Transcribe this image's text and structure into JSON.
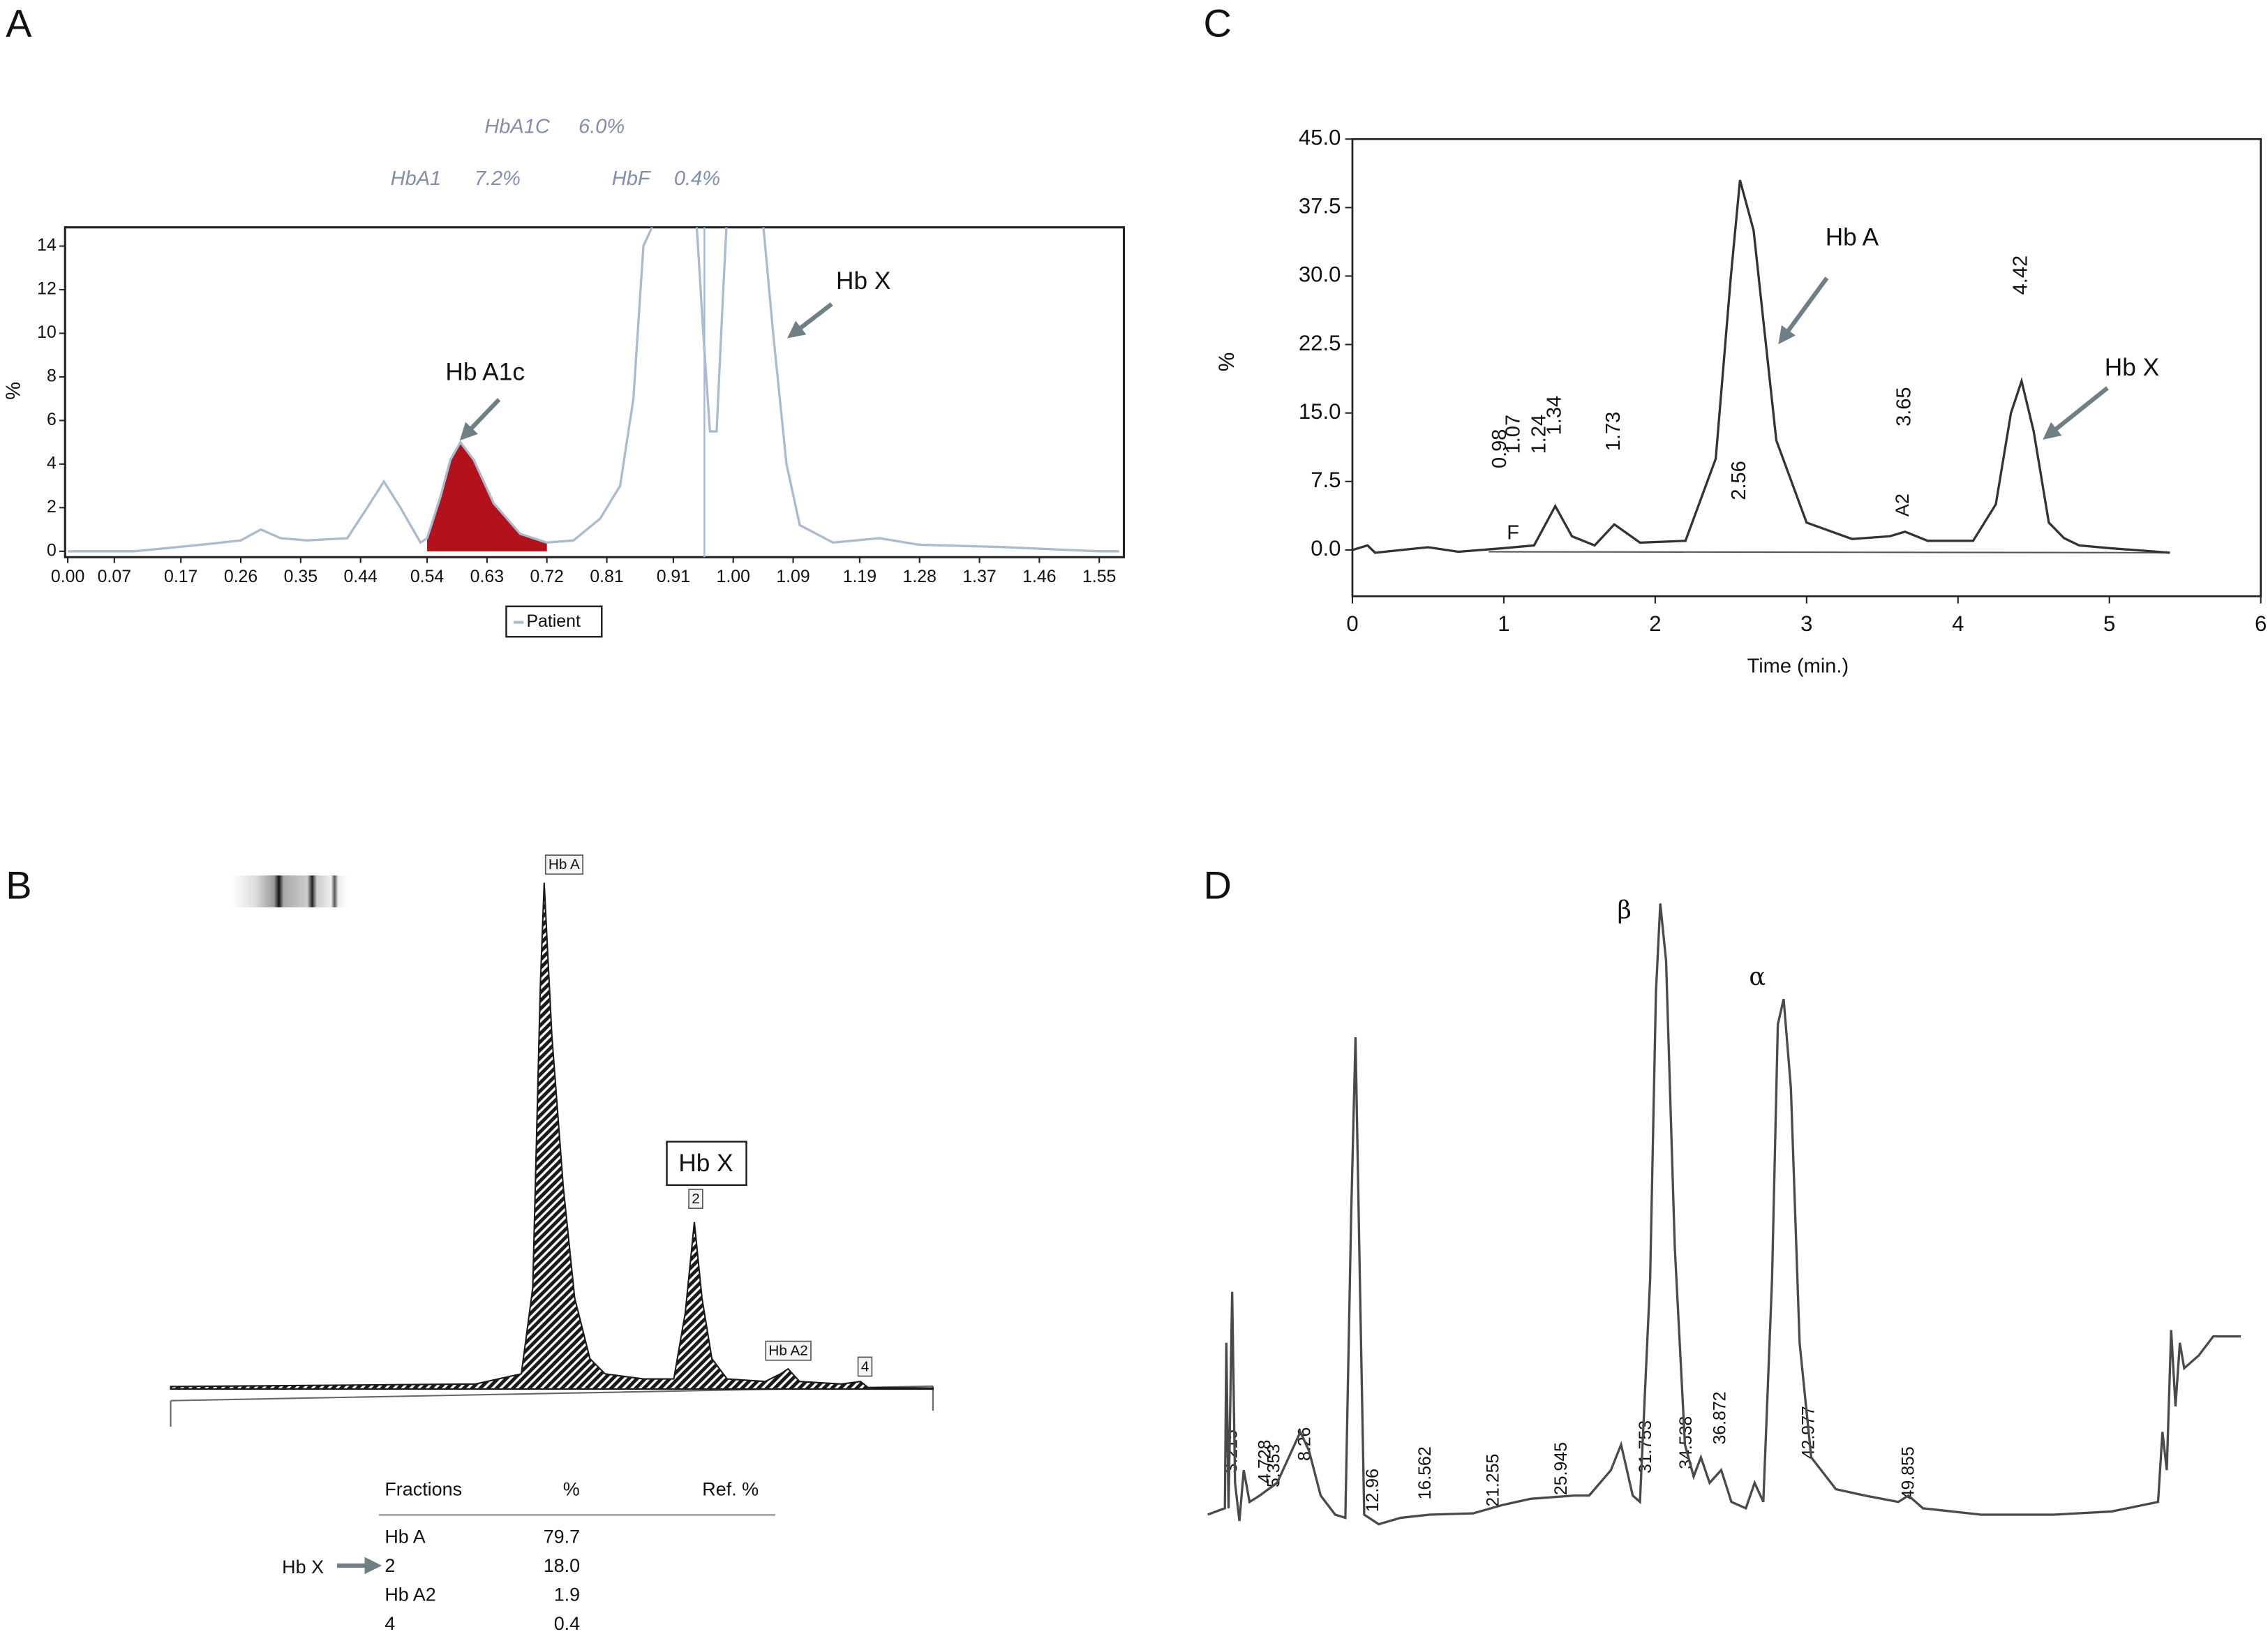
{
  "chart_data": [
    {
      "panel": "A",
      "type": "line",
      "x": [
        0,
        0.1,
        0.2,
        0.26,
        0.29,
        0.32,
        0.36,
        0.42,
        0.45,
        0.475,
        0.5,
        0.53,
        0.54,
        0.56,
        0.575,
        0.59,
        0.61,
        0.64,
        0.68,
        0.72,
        0.76,
        0.8,
        0.83,
        0.85,
        0.865,
        0.88,
        0.945,
        0.955,
        0.965,
        0.975,
        0.985,
        0.99,
        1.045,
        1.06,
        1.08,
        1.1,
        1.15,
        1.22,
        1.28,
        1.4,
        1.55,
        1.58
      ],
      "series": [
        {
          "name": "Patient",
          "color": "#a9bbcf",
          "values": [
            0,
            0,
            0.3,
            0.5,
            1.0,
            0.6,
            0.5,
            0.6,
            2.0,
            3.2,
            2.0,
            0.4,
            0.6,
            2.5,
            4.2,
            5.0,
            4.2,
            2.2,
            0.8,
            0.4,
            0.5,
            1.5,
            3,
            7,
            14,
            15,
            15,
            10,
            5.5,
            5.5,
            12,
            15,
            15,
            10,
            4,
            1.2,
            0.4,
            0.6,
            0.3,
            0.2,
            0,
            0
          ]
        }
      ],
      "highlight": {
        "xmin": 0.54,
        "xmax": 0.72,
        "color": "#b3121c"
      },
      "xlim": [
        -0.004,
        1.587
      ],
      "ylim": [
        -0.27,
        14.86
      ],
      "xticks": [
        {
          "value": 0,
          "label": "0.00"
        },
        0.07,
        0.17,
        0.26,
        0.35,
        0.44,
        0.54,
        0.63,
        0.72,
        0.81,
        0.91,
        {
          "value": 1,
          "label": "1.00"
        },
        1.09,
        1.19,
        1.28,
        1.37,
        1.46,
        1.55
      ],
      "yticks": [
        0,
        2,
        4,
        6,
        8,
        10,
        12,
        14
      ],
      "ylabel": "%",
      "annotations": {
        "hba1c_name": "HbA1C",
        "hba1c_value": "6.0%",
        "hba1_name": "HbA1",
        "hba1_value": "7.2%",
        "hbf_name": "HbF",
        "hbf_value": "0.4%",
        "peak_a1c": "Hb A1c",
        "peak_x": "Hb X"
      }
    },
    {
      "panel": "B",
      "type": "area",
      "x": [
        0,
        40,
        46,
        47.5,
        48.5,
        49,
        50,
        51.5,
        53,
        55,
        57,
        62,
        66,
        67.5,
        68.7,
        69.7,
        71,
        73,
        78,
        80,
        81,
        82.5,
        88,
        90.5,
        91.5,
        100
      ],
      "values": [
        0.5,
        1,
        3,
        20,
        80,
        100,
        70,
        40,
        18,
        6,
        3,
        2,
        2,
        15,
        33,
        18,
        6,
        2,
        1.5,
        3,
        4,
        1.5,
        1,
        1.5,
        0.3,
        0.2
      ],
      "color": "#1a1a1a",
      "xlim": [
        0,
        100
      ],
      "ylim": [
        0,
        100
      ],
      "peak_labels": [
        "Hb A",
        "2",
        "Hb A2",
        "4"
      ],
      "callout": "Hb X",
      "table": {
        "header": [
          "Fractions",
          "%",
          "Ref. %"
        ],
        "rows": [
          [
            "Hb A",
            "79.7"
          ],
          [
            "2",
            "18.0"
          ],
          [
            "Hb A2",
            "1.9"
          ],
          [
            "4",
            "0.4"
          ]
        ],
        "row_marker": "Hb X"
      }
    },
    {
      "panel": "C",
      "type": "line",
      "x": [
        0,
        0.1,
        0.15,
        0.5,
        0.7,
        1.0,
        1.2,
        1.34,
        1.45,
        1.6,
        1.73,
        1.9,
        2.2,
        2.4,
        2.5,
        2.56,
        2.65,
        2.8,
        3.0,
        3.3,
        3.55,
        3.65,
        3.8,
        4.1,
        4.25,
        4.35,
        4.42,
        4.5,
        4.6,
        4.7,
        4.8,
        5.0,
        5.4
      ],
      "values": [
        0,
        0.5,
        -0.3,
        0.3,
        -0.2,
        0.2,
        0.5,
        4.8,
        1.5,
        0.5,
        2.8,
        0.8,
        1.0,
        10,
        30,
        40.5,
        35,
        12,
        3,
        1.2,
        1.5,
        2.0,
        1.0,
        1.0,
        5,
        15,
        18.5,
        13,
        3,
        1.3,
        0.5,
        0.2,
        -0.3
      ],
      "color": "#333333",
      "xlim": [
        0,
        6
      ],
      "ylim": [
        -5.07,
        45
      ],
      "xticks": [
        0,
        1,
        2,
        3,
        4,
        5,
        6
      ],
      "yticks": [
        {
          "value": 0,
          "label": "0.0"
        },
        7.5,
        {
          "value": 15,
          "label": "15.0"
        },
        22.5,
        {
          "value": 30,
          "label": "30.0"
        },
        37.5,
        {
          "value": 45,
          "label": "45.0"
        }
      ],
      "xlabel": "Time (min.)",
      "ylabel": "%",
      "peak_times": [
        0.98,
        1.07,
        1.24,
        1.34,
        1.73,
        2.56,
        3.65,
        4.42
      ],
      "annotations": {
        "f": "F",
        "a2": "A2",
        "hb_a": "Hb A",
        "hb_x": "Hb X"
      }
    },
    {
      "panel": "D",
      "type": "line",
      "x": [
        1.72,
        2.9,
        3.0,
        3.15,
        3.4,
        3.6,
        3.9,
        4.2,
        4.6,
        5.3,
        6.5,
        7.5,
        8.1,
        8.7,
        9.5,
        10.5,
        11.2,
        11.6,
        11.9,
        12.2,
        12.5,
        13.5,
        15,
        17,
        20,
        22,
        24,
        27,
        28,
        29.5,
        30.2,
        31,
        31.5,
        32.2,
        32.6,
        32.9,
        33.3,
        33.9,
        34.6,
        35.2,
        35.7,
        36.3,
        37.1,
        37.8,
        38.8,
        39.4,
        40,
        40.6,
        41,
        41.4,
        41.9,
        42.5,
        43.3,
        45,
        47,
        49.3,
        50,
        51,
        55,
        60,
        64,
        67.2,
        67.5,
        67.8,
        68.1,
        68.4,
        68.7,
        69,
        70,
        71,
        72.9
      ],
      "values": [
        3,
        4,
        30,
        4,
        38,
        8,
        2,
        10,
        5,
        6,
        8,
        13,
        16,
        13,
        6,
        3,
        2.5,
        50,
        78,
        40,
        3,
        1.5,
        2.5,
        3,
        3.2,
        4.5,
        5.5,
        6,
        6,
        10,
        14,
        6,
        5,
        40,
        85,
        99,
        90,
        45,
        14,
        9,
        12,
        8,
        10,
        5,
        4,
        8,
        5,
        40,
        80,
        84,
        70,
        30,
        12,
        7,
        6,
        5,
        6,
        4,
        3,
        3,
        3.5,
        5,
        16,
        10,
        32,
        20,
        30,
        26,
        28,
        31,
        31
      ],
      "color": "#4a4a4a",
      "xlim": [
        1.72,
        72.98
      ],
      "ylim": [
        0,
        100
      ],
      "peak_times": [
        3.215,
        4.728,
        5.353,
        8.26,
        12.96,
        16.562,
        21.255,
        25.945,
        31.753,
        34.538,
        36.872,
        42.977,
        49.855
      ],
      "annotations": {
        "beta": "β",
        "alpha": "α"
      }
    }
  ]
}
